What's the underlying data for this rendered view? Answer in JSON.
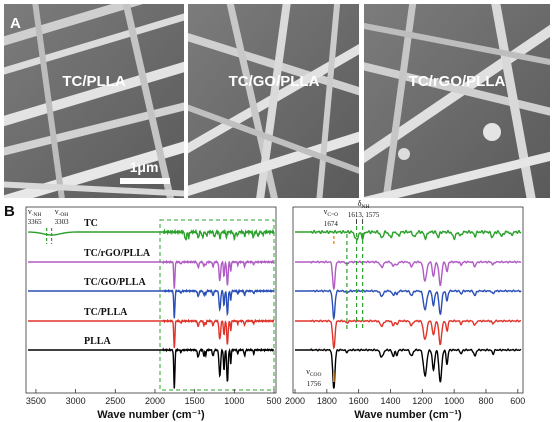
{
  "panel_a": {
    "letter": "A",
    "images": [
      {
        "label": "TC/PLLA"
      },
      {
        "label": "TC/GO/PLLA"
      },
      {
        "label": "TC/rGO/PLLA"
      }
    ],
    "scale_bar": "1μm"
  },
  "panel_b": {
    "letter": "B",
    "charts": [
      {
        "type": "line",
        "xlabel": "Wave number (cm⁻¹)",
        "xlim": [
          3600,
          500
        ],
        "xticks": [
          "3500",
          "3000",
          "2500",
          "2000",
          "1500",
          "1000",
          "500"
        ],
        "series": [
          {
            "name": "TC",
            "color": "#2ca02c"
          },
          {
            "name": "TC/rGO/PLLA",
            "color": "#b05cc4"
          },
          {
            "name": "TC/GO/PLLA",
            "color": "#2b4fb8"
          },
          {
            "name": "TC/PLLA",
            "color": "#e0342a"
          },
          {
            "name": "PLLA",
            "color": "#000000"
          }
        ],
        "annotations": [
          {
            "symbol": "ν",
            "sub": "-NH",
            "value": "3365",
            "x": 3365
          },
          {
            "symbol": "ν",
            "sub": "-OH",
            "value": "3303",
            "x": 3303
          }
        ]
      },
      {
        "type": "line",
        "xlabel": "Wave number (cm⁻¹)",
        "xlim": [
          2000,
          580
        ],
        "xticks": [
          "2000",
          "1800",
          "1600",
          "1400",
          "1200",
          "1000",
          "800",
          "600"
        ],
        "annotations": [
          {
            "symbol": "ν",
            "sub": "C=O",
            "value": "1674",
            "x": 1674
          },
          {
            "symbol": "δ",
            "sub": "NH",
            "value": "1613, 1575",
            "x": 1594
          },
          {
            "symbol": "ν",
            "sub": "COO",
            "value": "1756",
            "x": 1756
          }
        ]
      }
    ]
  }
}
